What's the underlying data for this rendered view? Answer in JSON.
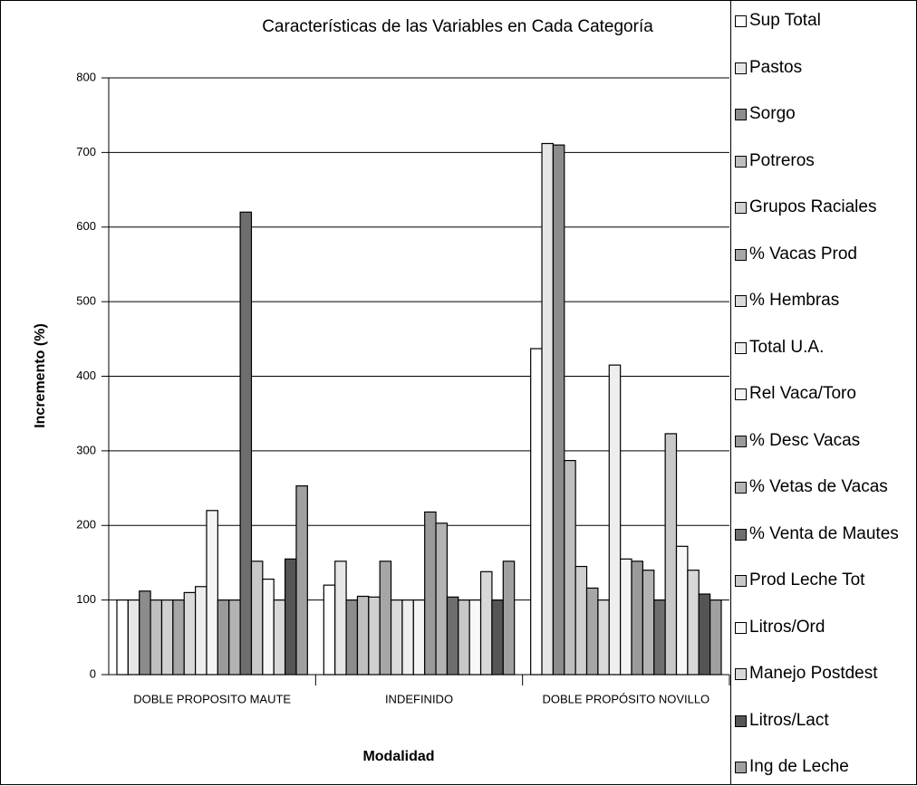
{
  "chart_data": {
    "type": "bar",
    "title": "Características de las Variables en Cada Categoría",
    "x_label": "Modalidad",
    "y_label": "Incremento (%)",
    "categories": [
      "DOBLE PROPOSITO MAUTE",
      "INDEFINIDO",
      "DOBLE PROPÓSITO NOVILLO"
    ],
    "ylim": [
      0,
      800
    ],
    "yticks": [
      0,
      100,
      200,
      300,
      400,
      500,
      600,
      700,
      800
    ],
    "grid": true,
    "series": [
      {
        "name": "Sup Total",
        "color": "#ffffff",
        "values": [
          100,
          120,
          437
        ]
      },
      {
        "name": "Pastos",
        "color": "#e6e6e6",
        "values": [
          100,
          152,
          712
        ]
      },
      {
        "name": "Sorgo",
        "color": "#8c8c8c",
        "values": [
          112,
          100,
          710
        ]
      },
      {
        "name": "Potreros",
        "color": "#bfbfbf",
        "values": [
          100,
          105,
          287
        ]
      },
      {
        "name": "Grupos Raciales",
        "color": "#d0d0d0",
        "values": [
          100,
          104,
          145
        ]
      },
      {
        "name": "% Vacas Prod",
        "color": "#a6a6a6",
        "values": [
          100,
          152,
          116
        ]
      },
      {
        "name": "% Hembras",
        "color": "#dadada",
        "values": [
          110,
          100,
          100
        ]
      },
      {
        "name": "Total U.A.",
        "color": "#eeeeee",
        "values": [
          118,
          100,
          415
        ]
      },
      {
        "name": "Rel Vaca/Toro",
        "color": "#f4f4f4",
        "values": [
          220,
          100,
          155
        ]
      },
      {
        "name": "% Desc Vacas",
        "color": "#9a9a9a",
        "values": [
          100,
          218,
          152
        ]
      },
      {
        "name": "% Vetas de Vacas",
        "color": "#b3b3b3",
        "values": [
          100,
          203,
          140
        ]
      },
      {
        "name": "% Venta de Mautes",
        "color": "#6e6e6e",
        "values": [
          620,
          104,
          100
        ]
      },
      {
        "name": "Prod Leche Tot",
        "color": "#c8c8c8",
        "values": [
          152,
          100,
          323
        ]
      },
      {
        "name": "Litros/Ord",
        "color": "#f8f8f8",
        "values": [
          128,
          100,
          172
        ]
      },
      {
        "name": "Manejo Postdest",
        "color": "#d8d8d8",
        "values": [
          100,
          138,
          140
        ]
      },
      {
        "name": "Litros/Lact",
        "color": "#555555",
        "values": [
          155,
          100,
          108
        ]
      },
      {
        "name": "Ing de Leche",
        "color": "#a0a0a0",
        "values": [
          253,
          152,
          100
        ]
      }
    ]
  }
}
